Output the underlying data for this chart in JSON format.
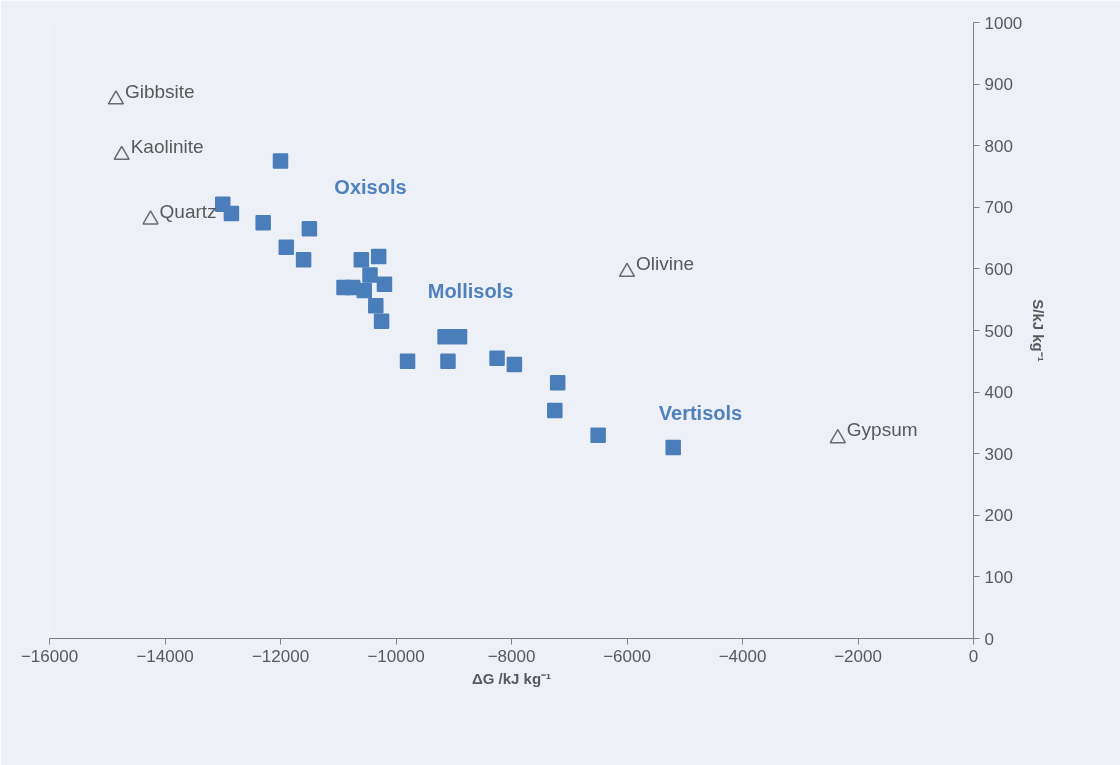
{
  "chart_data": {
    "type": "scatter",
    "xlabel": "ΔG /kJ kg⁻¹",
    "ylabel": "S/kJ kg⁻¹",
    "xlim": [
      -16000,
      0
    ],
    "ylim": [
      0,
      1000
    ],
    "xticks": [
      -16000,
      -14000,
      -12000,
      -10000,
      -8000,
      -6000,
      -4000,
      -2000,
      0
    ],
    "yticks": [
      0,
      100,
      200,
      300,
      400,
      500,
      600,
      700,
      800,
      900,
      1000
    ],
    "grid": false,
    "series": [
      {
        "color": "#4a7ebb",
        "marker": "square",
        "x": [
          -12000,
          -13000,
          -12850,
          -12300,
          -11500,
          -11900,
          -11600,
          -10600,
          -10300,
          -10450,
          -10200,
          -10900,
          -10750,
          -10550,
          -10350,
          -10250,
          -9150,
          -8900,
          -9800,
          -9100,
          -8250,
          -7950,
          -7200,
          -7250,
          -6500,
          -5200
        ],
        "values": [
          775,
          705,
          690,
          675,
          665,
          635,
          615,
          615,
          620,
          590,
          575,
          570,
          570,
          565,
          540,
          515,
          490,
          490,
          450,
          450,
          455,
          445,
          415,
          370,
          330,
          310
        ]
      },
      {
        "color": "#6b6b6b",
        "marker": "triangle",
        "x": [
          -14850,
          -14750,
          -14250,
          -6000,
          -2350
        ],
        "values": [
          875,
          785,
          680,
          595,
          325
        ],
        "value_labels": [
          "Gibbsite",
          "Kaolinite",
          "Quartz",
          "Olivine",
          "Gypsum"
        ]
      }
    ],
    "annotations": [
      "Oxisols",
      "Mollisols",
      "Vertisols"
    ]
  }
}
